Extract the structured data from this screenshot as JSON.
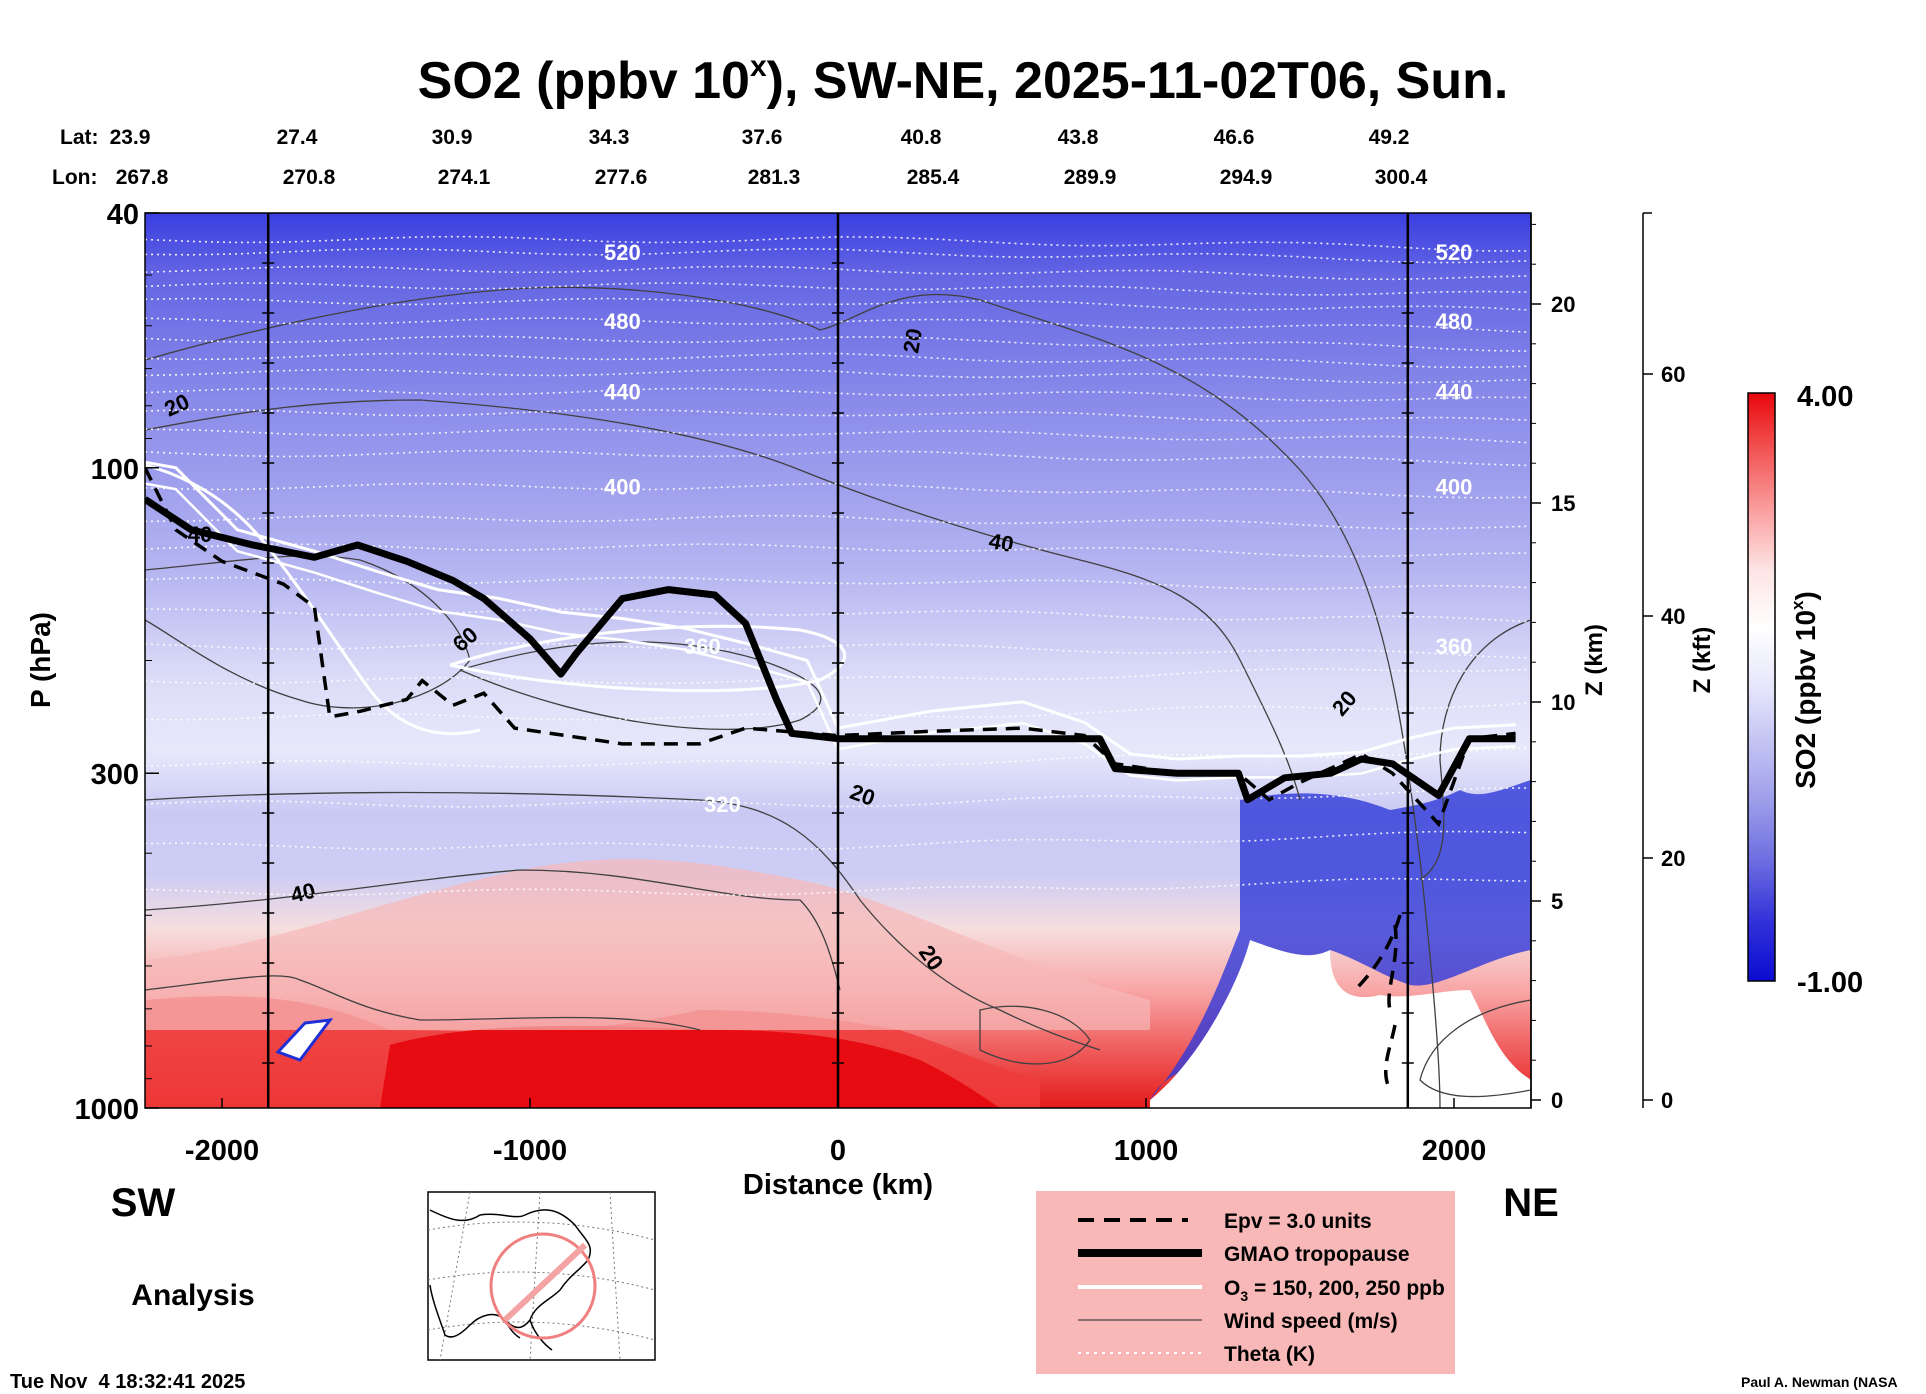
{
  "chart_data": {
    "type": "heatmap",
    "title_main": "SO2 (ppbv 10",
    "title_sup": "x",
    "title_rest": "), SW-NE, 2025-11-02T06, Sun.",
    "xlabel": "Distance (km)",
    "ylabel": "P (hPa)",
    "xlim": [
      -2250,
      2250
    ],
    "xticks": [
      -2000,
      -1000,
      0,
      1000,
      2000
    ],
    "xtick_labels": [
      "-2000",
      "-1000",
      "0",
      "1000",
      "2000"
    ],
    "yticks_hpa": [
      40,
      100,
      300,
      1000
    ],
    "ylim_hpa": [
      1000,
      40
    ],
    "z_km_label": "Z (km)",
    "z_km_ticks": [
      0,
      5,
      10,
      15,
      20
    ],
    "z_kft_label": "Z (kft)",
    "z_kft_ticks": [
      0,
      20,
      40,
      60
    ],
    "lat_label": "Lat:",
    "lon_label": "Lon:",
    "lats": [
      "23.9",
      "27.4",
      "30.9",
      "34.3",
      "37.6",
      "40.8",
      "43.8",
      "46.6",
      "49.2"
    ],
    "lons": [
      "267.8",
      "270.8",
      "274.1",
      "277.6",
      "281.3",
      "285.4",
      "289.9",
      "294.9",
      "300.4"
    ],
    "vertical_markers_km": [
      -1850,
      0,
      1850
    ],
    "colorbar": {
      "label_main": "SO2 (ppbv 10",
      "label_sup": "x",
      "label_rest": ")",
      "max": "4.00",
      "min": "-1.00",
      "colors": [
        "#e8070c",
        "#f25656",
        "#fa9f9f",
        "#fde4e4",
        "#ffffff",
        "#e6e6fb",
        "#c1c1f3",
        "#9b9bea",
        "#6b6be0",
        "#3131d9",
        "#0b0bd0"
      ]
    },
    "theta_contours": [
      {
        "label": "520",
        "p": 46
      },
      {
        "label": "480",
        "p": 59
      },
      {
        "label": "440",
        "p": 76
      },
      {
        "label": "400",
        "p": 107
      },
      {
        "label": "360",
        "p": 190
      },
      {
        "label": "320",
        "p": 335
      }
    ],
    "wind_contour_labels": [
      "20",
      "40",
      "60",
      "40",
      "20",
      "20",
      "40",
      "20",
      "20"
    ],
    "tropopause_hpa": [
      [
        -2250,
        112
      ],
      [
        -2100,
        125
      ],
      [
        -1900,
        132
      ],
      [
        -1700,
        138
      ],
      [
        -1560,
        132
      ],
      [
        -1400,
        140
      ],
      [
        -1250,
        150
      ],
      [
        -1150,
        160
      ],
      [
        -1000,
        185
      ],
      [
        -900,
        210
      ],
      [
        -850,
        195
      ],
      [
        -700,
        160
      ],
      [
        -550,
        155
      ],
      [
        -400,
        158
      ],
      [
        -300,
        175
      ],
      [
        -200,
        230
      ],
      [
        -150,
        260
      ],
      [
        0,
        265
      ],
      [
        300,
        265
      ],
      [
        600,
        265
      ],
      [
        850,
        265
      ],
      [
        900,
        295
      ],
      [
        1100,
        300
      ],
      [
        1300,
        300
      ],
      [
        1330,
        330
      ],
      [
        1450,
        305
      ],
      [
        1600,
        300
      ],
      [
        1700,
        285
      ],
      [
        1800,
        290
      ],
      [
        1950,
        325
      ],
      [
        2050,
        265
      ],
      [
        2200,
        265
      ]
    ],
    "epv3_hpa": [
      [
        -2250,
        100
      ],
      [
        -2150,
        125
      ],
      [
        -2000,
        140
      ],
      [
        -1800,
        152
      ],
      [
        -1700,
        165
      ],
      [
        -1650,
        245
      ],
      [
        -1550,
        240
      ],
      [
        -1400,
        230
      ],
      [
        -1350,
        215
      ],
      [
        -1250,
        235
      ],
      [
        -1150,
        225
      ],
      [
        -1050,
        255
      ],
      [
        -700,
        270
      ],
      [
        -450,
        270
      ],
      [
        -300,
        255
      ],
      [
        0,
        262
      ],
      [
        300,
        258
      ],
      [
        600,
        255
      ],
      [
        800,
        262
      ],
      [
        900,
        290
      ],
      [
        1100,
        300
      ],
      [
        1300,
        300
      ],
      [
        1400,
        330
      ],
      [
        1500,
        310
      ],
      [
        1700,
        280
      ],
      [
        1800,
        300
      ],
      [
        1950,
        360
      ],
      [
        2050,
        265
      ],
      [
        2200,
        260
      ]
    ],
    "o3_hpa": [
      [
        -2250,
        98
      ],
      [
        -2150,
        100
      ],
      [
        -1950,
        125
      ],
      [
        -1700,
        135
      ],
      [
        -1500,
        145
      ],
      [
        -1300,
        155
      ],
      [
        -1100,
        160
      ],
      [
        -900,
        168
      ],
      [
        -700,
        172
      ],
      [
        -500,
        178
      ],
      [
        -300,
        188
      ],
      [
        -100,
        200
      ],
      [
        0,
        255
      ],
      [
        300,
        240
      ],
      [
        600,
        232
      ],
      [
        800,
        250
      ],
      [
        950,
        280
      ],
      [
        1100,
        285
      ],
      [
        1300,
        282
      ],
      [
        1500,
        282
      ],
      [
        1700,
        278
      ],
      [
        1850,
        265
      ],
      [
        2000,
        255
      ],
      [
        2200,
        252
      ]
    ]
  },
  "legend": {
    "epv": "Epv = 3.0 units",
    "tropopause": "GMAO tropopause",
    "o3_prefix": "O",
    "o3_sub": "3",
    "o3_suffix": " = 150, 200, 250 ppb",
    "wind": "Wind speed (m/s)",
    "theta": "Theta (K)"
  },
  "labels": {
    "sw": "SW",
    "ne": "NE",
    "analysis": "Analysis",
    "timestamp": "Tue Nov  4 18:32:41 2025",
    "credit": "Paul A. Newman (NASA"
  }
}
